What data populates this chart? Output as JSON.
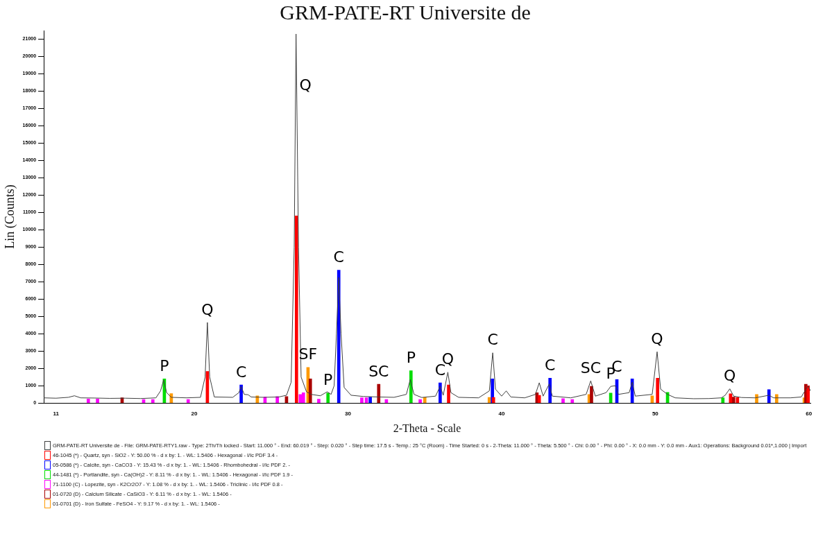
{
  "chart_data": {
    "type": "line",
    "title": "GRM-PATE-RT Universite de",
    "xlabel": "2-Theta - Scale",
    "ylabel": "Lin (Counts)",
    "xlim": [
      10.2,
      60.1
    ],
    "xticks": [
      11,
      20,
      30,
      40,
      50,
      60
    ],
    "ylim": [
      0,
      21500
    ],
    "yticks": [
      0,
      1000,
      2000,
      3000,
      4000,
      5000,
      6000,
      7000,
      8000,
      9000,
      10000,
      11000,
      12000,
      13000,
      14000,
      15000,
      16000,
      17000,
      18000,
      19000,
      20000,
      21000
    ],
    "grid": false,
    "legend": "bottom",
    "marker": "none",
    "line_style": "solid",
    "series": [
      {
        "name": "GRM-PATE-RT Universite de - File: GRM-PATE-RTY1.raw - Type: 2Th/Th locked - Start: 11.000 ° - End: 60.019 ° - Step: 0.020 ° - Step time: 17.5 s - Temp.: 25 °C (Room) - Time Started: 0 s - 2-Theta: 11.000 ° - Theta: 5.500 ° - Chi: 0.00 ° - Phi: 0.00 ° - X: 0.0 mm - Y: 0.0 mm - Aux1: Operations: Background 0.01*,1.000 | Import",
        "color": "#404040",
        "x": [
          10.2,
          11,
          11.8,
          12.2,
          12.6,
          13.5,
          14.5,
          15.5,
          16.5,
          17.5,
          17.8,
          18.0,
          18.2,
          18.5,
          19.5,
          20.4,
          20.7,
          20.85,
          21.0,
          21.3,
          22.5,
          22.9,
          23.05,
          23.25,
          23.5,
          23.7,
          24.5,
          25.5,
          26.0,
          26.3,
          26.5,
          26.62,
          26.66,
          26.78,
          26.95,
          27.3,
          27.6,
          28.2,
          28.65,
          28.9,
          29.1,
          29.25,
          29.4,
          29.55,
          29.75,
          30.2,
          31.0,
          32.0,
          33.0,
          33.8,
          34.05,
          34.3,
          34.8,
          35.7,
          36.0,
          36.2,
          36.5,
          36.7,
          37.2,
          38.5,
          39.2,
          39.42,
          39.6,
          40.0,
          40.3,
          40.6,
          41.5,
          42.2,
          42.45,
          42.7,
          43.1,
          43.3,
          44.5,
          45.5,
          45.8,
          46.1,
          46.8,
          47.1,
          47.4,
          47.6,
          48.3,
          48.5,
          48.7,
          49.8,
          50.12,
          50.35,
          50.8,
          51.3,
          52.5,
          53.5,
          54.3,
          54.55,
          54.85,
          55.1,
          55.6,
          56.5,
          57.4,
          57.7,
          58.8,
          59.5,
          59.95,
          60.1
        ],
        "values": [
          300,
          280,
          330,
          420,
          300,
          290,
          270,
          280,
          260,
          300,
          700,
          1330,
          600,
          330,
          300,
          330,
          1500,
          4650,
          1500,
          350,
          330,
          600,
          950,
          500,
          480,
          350,
          330,
          350,
          450,
          1200,
          9000,
          21300,
          18300,
          9000,
          1500,
          650,
          500,
          420,
          650,
          500,
          1000,
          4000,
          7250,
          4000,
          900,
          450,
          380,
          350,
          330,
          500,
          1350,
          500,
          320,
          400,
          970,
          450,
          1780,
          600,
          330,
          300,
          700,
          2900,
          800,
          400,
          700,
          350,
          300,
          500,
          1170,
          400,
          1100,
          400,
          300,
          500,
          1280,
          400,
          600,
          960,
          1000,
          500,
          600,
          1200,
          400,
          500,
          2960,
          800,
          500,
          300,
          250,
          260,
          300,
          450,
          820,
          400,
          320,
          300,
          450,
          300,
          300,
          350,
          1000,
          700
        ]
      },
      {
        "name": "46-1045 (*) - Quartz, syn - SiO2 - Y: 50.00 % - d x by: 1. - WL: 1.5406 - Hexagonal - I/Ic PDF 3.4 -",
        "color": "#ff0000",
        "type": "bar",
        "x": [
          20.85,
          26.65,
          36.55,
          39.47,
          42.45,
          50.15,
          54.9,
          55.35,
          59.95
        ],
        "values": [
          1830,
          10800,
          1050,
          330,
          450,
          1440,
          540,
          330,
          1000
        ]
      },
      {
        "name": "05-0586 (*) - Calcite, syn - CaCO3 - Y: 15.43 % - d x by: 1. - WL: 1.5406 - Rhombohedral - I/Ic PDF 2. -",
        "color": "#0000ff",
        "type": "bar",
        "x": [
          23.05,
          29.4,
          31.45,
          36.0,
          39.4,
          43.15,
          47.5,
          48.5,
          57.4
        ],
        "values": [
          1050,
          7670,
          350,
          1170,
          1400,
          1440,
          1360,
          1400,
          780
        ]
      },
      {
        "name": "44-1481 (*) - Portlandite, syn - Ca(OH)2 - Y: 8.11 % - d x by: 1. - WL: 1.5406 - Hexagonal - I/Ic PDF 1.9 -",
        "color": "#00dd00",
        "type": "bar",
        "x": [
          18.05,
          28.7,
          34.1,
          47.1,
          50.8,
          54.4
        ],
        "values": [
          1400,
          580,
          1870,
          580,
          620,
          300
        ]
      },
      {
        "name": "71-1100 (C) - Lopezite, syn - K2Cr2O7 - Y: 1.08 % - d x by: 1. - WL: 1.5406 - Triclinic - I/Ic PDF 0.8 -",
        "color": "#ff00ff",
        "type": "bar",
        "x": [
          13.1,
          13.7,
          16.7,
          17.3,
          19.6,
          24.6,
          25.4,
          26.9,
          27.1,
          28.1,
          30.9,
          31.2,
          32.5,
          34.7,
          44.0,
          44.6
        ],
        "values": [
          230,
          230,
          200,
          200,
          200,
          350,
          380,
          500,
          600,
          220,
          300,
          300,
          200,
          200,
          250,
          200
        ]
      },
      {
        "name": "01-0720 (D) - Calcium Silicate - CaSiO3 - Y: 6.11 % - d x by: 1. - WL: 1.5406 -",
        "color": "#aa0000",
        "type": "bar",
        "x": [
          15.3,
          26.0,
          27.55,
          32.0,
          42.3,
          45.85,
          55.1,
          59.8
        ],
        "values": [
          300,
          380,
          1400,
          1090,
          600,
          970,
          350,
          1090
        ]
      },
      {
        "name": "01-0701 (D) - Iron Sulfate - FeSO4 - Y: 9.17 % - d x by: 1. - WL: 1.5406 -",
        "color": "#ff9900",
        "type": "bar",
        "x": [
          18.5,
          24.1,
          27.4,
          35.0,
          39.2,
          45.7,
          49.8,
          56.6,
          57.9,
          59.7
        ],
        "values": [
          550,
          420,
          2060,
          320,
          330,
          500,
          420,
          500,
          500,
          300
        ]
      }
    ],
    "annotations": [
      {
        "text": "P",
        "x": 18.05,
        "y": 1400
      },
      {
        "text": "Q",
        "x": 20.85,
        "y": 4650
      },
      {
        "text": "C",
        "x": 23.05,
        "y": 1050
      },
      {
        "text": "Q",
        "x": 26.66,
        "y": 18300
      },
      {
        "text": "SF",
        "x": 27.4,
        "y": 2060
      },
      {
        "text": "P",
        "x": 28.7,
        "y": 580
      },
      {
        "text": "C",
        "x": 29.4,
        "y": 7670
      },
      {
        "text": "SC",
        "x": 32.0,
        "y": 1090
      },
      {
        "text": "P",
        "x": 34.1,
        "y": 1870
      },
      {
        "text": "C",
        "x": 36.0,
        "y": 1170
      },
      {
        "text": "Q",
        "x": 36.5,
        "y": 1780
      },
      {
        "text": "C",
        "x": 39.42,
        "y": 2900
      },
      {
        "text": "C",
        "x": 43.15,
        "y": 1440
      },
      {
        "text": "SC",
        "x": 45.8,
        "y": 1280
      },
      {
        "text": "P",
        "x": 47.1,
        "y": 960
      },
      {
        "text": "C",
        "x": 47.5,
        "y": 1360
      },
      {
        "text": "Q",
        "x": 50.12,
        "y": 2960
      },
      {
        "text": "Q",
        "x": 54.85,
        "y": 820
      }
    ]
  }
}
